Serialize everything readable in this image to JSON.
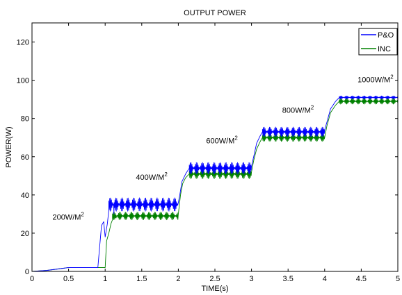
{
  "chart_data": {
    "type": "line",
    "title": "OUTPUT POWER",
    "xlabel": "TIME(s)",
    "ylabel": "POWER(W)",
    "xlim": [
      0,
      5
    ],
    "ylim": [
      0,
      130
    ],
    "grid": false,
    "legend_position": "top-right",
    "x_ticks": [
      "0",
      "0.5",
      "1",
      "1.5",
      "2",
      "2.5",
      "3",
      "3.5",
      "4",
      "4.5",
      "5"
    ],
    "y_ticks": [
      "0",
      "20",
      "40",
      "60",
      "80",
      "100",
      "120"
    ],
    "x_tick_values": [
      0,
      0.5,
      1,
      1.5,
      2,
      2.5,
      3,
      3.5,
      4,
      4.5,
      5
    ],
    "y_tick_values": [
      0,
      20,
      40,
      60,
      80,
      100,
      120
    ],
    "annotations": [
      {
        "base": "200W/M",
        "sup": "2",
        "x": 0.28,
        "y": 27
      },
      {
        "base": "400W/M",
        "sup": "2",
        "x": 1.42,
        "y": 48
      },
      {
        "base": "600W/M",
        "sup": "2",
        "x": 2.38,
        "y": 67
      },
      {
        "base": "800W/M",
        "sup": "2",
        "x": 3.42,
        "y": 83
      },
      {
        "base": "1000W/M",
        "sup": "2",
        "x": 4.45,
        "y": 99
      }
    ],
    "series": [
      {
        "name": "P&O",
        "color": "#0000ff",
        "segments": [
          {
            "t0": 0.0,
            "t1": 0.9,
            "base": 0.0,
            "amp": 0.0
          },
          {
            "t0": 1.05,
            "t1": 2.0,
            "base": 35.0,
            "amp": 3.5
          },
          {
            "t0": 2.15,
            "t1": 3.0,
            "base": 54.0,
            "amp": 3.0
          },
          {
            "t0": 3.15,
            "t1": 4.0,
            "base": 73.0,
            "amp": 2.5
          },
          {
            "t0": 4.2,
            "t1": 5.0,
            "base": 91.0,
            "amp": 0.8
          }
        ],
        "x": [
          0,
          0.2,
          0.4,
          0.5,
          0.9,
          0.95,
          0.98,
          1.0,
          1.03,
          1.05,
          1.08,
          1.12,
          1.2,
          2.0,
          2.02,
          2.05,
          2.1,
          2.15,
          3.0,
          3.03,
          3.07,
          3.12,
          3.15,
          4.0,
          4.03,
          4.08,
          4.15,
          4.2,
          5.0
        ],
        "values": [
          0,
          0.5,
          1.5,
          2,
          2,
          24,
          26,
          18,
          25,
          32,
          36,
          30,
          35,
          36,
          40,
          47,
          51,
          54,
          55,
          60,
          67,
          71,
          73,
          74,
          78,
          85,
          89,
          91,
          91
        ]
      },
      {
        "name": "INC",
        "color": "#008000",
        "segments": [
          {
            "t0": 0.0,
            "t1": 1.0,
            "base": 0.0,
            "amp": 0.0
          },
          {
            "t0": 1.1,
            "t1": 2.0,
            "base": 29.0,
            "amp": 2.0
          },
          {
            "t0": 2.15,
            "t1": 3.0,
            "base": 51.0,
            "amp": 2.5
          },
          {
            "t0": 3.15,
            "t1": 4.0,
            "base": 70.0,
            "amp": 2.0
          },
          {
            "t0": 4.2,
            "t1": 5.0,
            "base": 89.0,
            "amp": 1.5
          }
        ],
        "x": [
          0,
          0.2,
          0.4,
          0.5,
          1.0,
          1.02,
          1.05,
          1.08,
          1.1,
          1.15,
          1.3,
          2.0,
          2.03,
          2.06,
          2.1,
          2.15,
          3.0,
          3.03,
          3.07,
          3.12,
          3.15,
          4.0,
          4.03,
          4.08,
          4.15,
          4.2,
          5.0
        ],
        "values": [
          0,
          0.5,
          1.5,
          2,
          2,
          16,
          20,
          25,
          27,
          28,
          30,
          30,
          40,
          46,
          49,
          51,
          52,
          58,
          64,
          68,
          70,
          70,
          76,
          83,
          87,
          89,
          89
        ]
      }
    ]
  }
}
